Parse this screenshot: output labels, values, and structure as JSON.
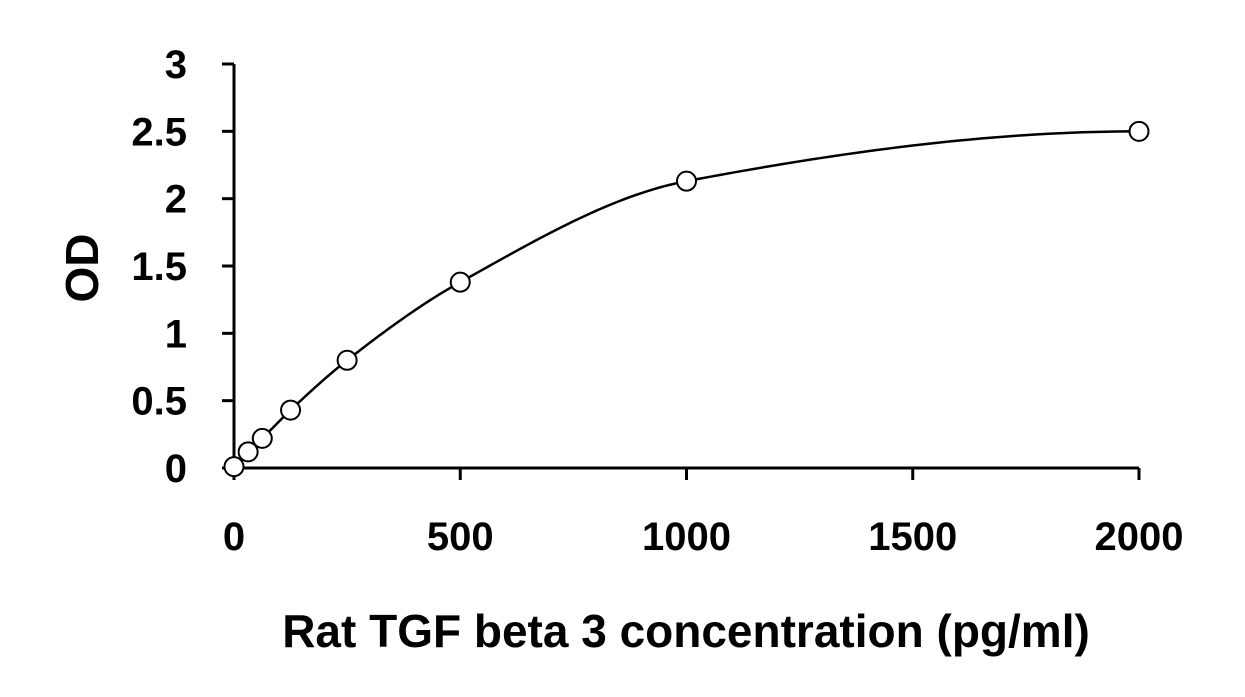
{
  "chart_data": {
    "type": "scatter",
    "title": "",
    "xlabel": "Rat TGF beta 3 concentration (pg/ml)",
    "ylabel": "OD",
    "xlim": [
      0,
      2000
    ],
    "ylim": [
      0,
      3
    ],
    "x_ticks": [
      0,
      500,
      1000,
      1500,
      2000
    ],
    "y_ticks": [
      0,
      0.5,
      1,
      1.5,
      2,
      2.5,
      3
    ],
    "x_tick_labels": [
      "0",
      "500",
      "1000",
      "1500",
      "2000"
    ],
    "y_tick_labels": [
      "0",
      "0.5",
      "1",
      "1.5",
      "2",
      "2.5",
      "3"
    ],
    "grid": false,
    "legend": "none",
    "colors": {
      "marker_stroke": "#000000",
      "marker_fill": "#ffffff",
      "curve": "#000000",
      "axis": "#000000"
    },
    "series": [
      {
        "marker": "open-circle",
        "fit_line": "smooth",
        "x": [
          0,
          31.25,
          62.5,
          125,
          250,
          500,
          1000,
          2000
        ],
        "y": [
          0.01,
          0.12,
          0.22,
          0.43,
          0.8,
          1.38,
          2.13,
          2.5
        ]
      }
    ]
  }
}
